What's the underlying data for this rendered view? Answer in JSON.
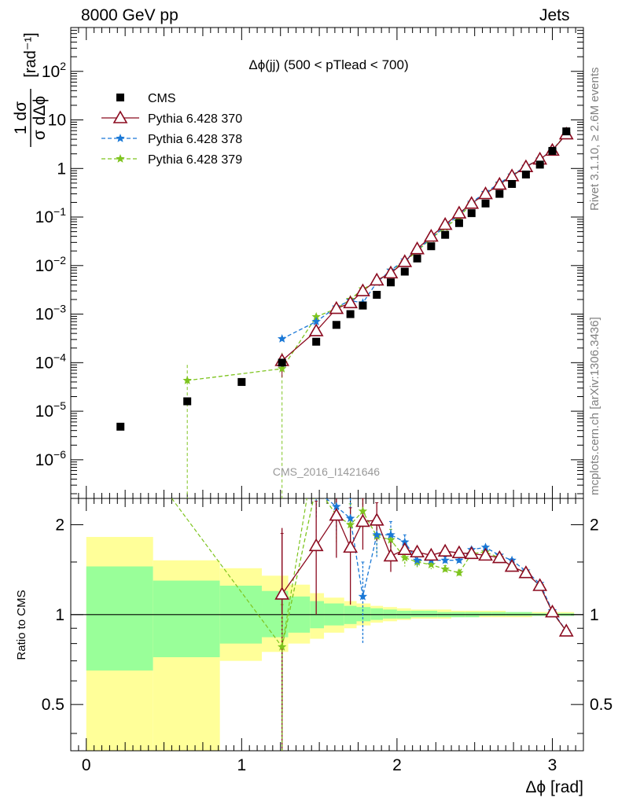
{
  "header": {
    "left": "8000 GeV pp",
    "right": "Jets"
  },
  "side_labels": {
    "rivet": "Rivet 3.1.10, ≥ 2.6M events",
    "mcplots": "mcplots.cern.ch [arXiv:1306.3436]"
  },
  "watermark": "CMS_2016_I1421646",
  "colors": {
    "cms": "#000000",
    "p370": "#8b0a1f",
    "p378": "#1a78d6",
    "p379": "#7ec41f",
    "band_outer": "#ffff99",
    "band_inner": "#99ff99"
  },
  "chart_data": [
    {
      "type": "scatter",
      "title": "Δϕ(jj) (500 < pTlead <  700)",
      "ylabel_num": "1 dσ",
      "ylabel_den": "σ dΔϕ",
      "ylabel_unit": "[rad⁻¹]",
      "xlabel": "Δϕ [rad]",
      "xlim": [
        -0.1,
        3.2
      ],
      "ylim": [
        1.6e-07,
        800
      ],
      "yscale": "log",
      "xticks": [
        0,
        1,
        2,
        3
      ],
      "yticks": [
        {
          "v": 1e-06,
          "base": "10",
          "exp": "−6"
        },
        {
          "v": 1e-05,
          "base": "10",
          "exp": "−5"
        },
        {
          "v": 0.0001,
          "base": "10",
          "exp": "−4"
        },
        {
          "v": 0.001,
          "base": "10",
          "exp": "−3"
        },
        {
          "v": 0.01,
          "base": "10",
          "exp": "−2"
        },
        {
          "v": 0.1,
          "base": "10",
          "exp": "−1"
        },
        {
          "v": 1,
          "base": "1",
          "exp": ""
        },
        {
          "v": 10,
          "base": "10",
          "exp": ""
        },
        {
          "v": 100,
          "base": "10",
          "exp": "2"
        }
      ],
      "legend_position": "top-left",
      "series": [
        {
          "name": "CMS",
          "marker": "square",
          "x": [
            0.22,
            0.65,
            1.0,
            1.26,
            1.48,
            1.61,
            1.7,
            1.78,
            1.87,
            1.96,
            2.05,
            2.13,
            2.22,
            2.31,
            2.4,
            2.48,
            2.57,
            2.66,
            2.74,
            2.83,
            2.92,
            3.0,
            3.09
          ],
          "y": [
            4.8e-06,
            1.6e-05,
            4e-05,
            0.0001,
            0.00027,
            0.0006,
            0.001,
            0.0015,
            0.0025,
            0.0045,
            0.0075,
            0.014,
            0.025,
            0.043,
            0.075,
            0.12,
            0.19,
            0.3,
            0.48,
            0.75,
            1.2,
            2.3,
            5.8
          ]
        },
        {
          "name": "Pythia 6.428 370",
          "marker": "triangle",
          "x": [
            1.26,
            1.48,
            1.61,
            1.7,
            1.78,
            1.87,
            1.96,
            2.05,
            2.13,
            2.22,
            2.31,
            2.4,
            2.48,
            2.57,
            2.66,
            2.74,
            2.83,
            2.92,
            3.0,
            3.09
          ],
          "y": [
            0.00011,
            0.00045,
            0.0013,
            0.0017,
            0.003,
            0.005,
            0.007,
            0.012,
            0.022,
            0.04,
            0.07,
            0.12,
            0.19,
            0.3,
            0.47,
            0.7,
            1.08,
            1.55,
            2.35,
            5.1
          ]
        },
        {
          "name": "Pythia 6.428 378",
          "marker": "star",
          "x": [
            1.26,
            1.48,
            1.61,
            1.7,
            1.78,
            1.87,
            1.96,
            2.05,
            2.13,
            2.22,
            2.31,
            2.4,
            2.48,
            2.57,
            2.66,
            2.74,
            2.83,
            2.92,
            3.0,
            3.09
          ],
          "y": [
            0.00031,
            0.0007,
            0.0014,
            0.0019,
            0.0017,
            0.0045,
            0.008,
            0.013,
            0.021,
            0.037,
            0.065,
            0.11,
            0.2,
            0.32,
            0.5,
            0.73,
            1.1,
            1.55,
            2.4,
            5.0
          ]
        },
        {
          "name": "Pythia 6.428 379",
          "marker": "star",
          "x": [
            0.65,
            1.26,
            1.48,
            1.61,
            1.7,
            1.78,
            1.87,
            1.96,
            2.05,
            2.13,
            2.22,
            2.31,
            2.4,
            2.48,
            2.57,
            2.66,
            2.74,
            2.83,
            2.92,
            3.0,
            3.09
          ],
          "y": [
            4.3e-05,
            7.5e-05,
            0.00088,
            0.0013,
            0.002,
            0.0033,
            0.0045,
            0.008,
            0.012,
            0.02,
            0.036,
            0.061,
            0.1,
            0.19,
            0.3,
            0.48,
            0.72,
            1.1,
            1.55,
            2.4,
            5.2
          ]
        }
      ]
    },
    {
      "type": "scatter",
      "ylabel": "Ratio to CMS",
      "xlabel": "Δϕ [rad]",
      "xlim": [
        -0.1,
        3.2
      ],
      "ylim": [
        0.35,
        2.45
      ],
      "yscale": "log",
      "yticks": [
        0.5,
        1,
        2
      ],
      "reference_line": 1,
      "band_edges": [
        0,
        0.43,
        0.86,
        1.13,
        1.3,
        1.44,
        1.53,
        1.66,
        1.74,
        1.83,
        1.91,
        2.0,
        2.09,
        2.18,
        2.26,
        2.35,
        2.44,
        2.53,
        2.61,
        2.7,
        2.79,
        2.87,
        2.96,
        3.05,
        3.14
      ],
      "band_outer_lo": [
        0.35,
        0.35,
        0.7,
        0.75,
        0.8,
        0.83,
        0.87,
        0.9,
        0.92,
        0.94,
        0.95,
        0.96,
        0.97,
        0.97,
        0.97,
        0.98,
        0.98,
        0.98,
        0.98,
        0.98,
        0.98,
        0.99,
        0.99,
        0.99
      ],
      "band_outer_hi": [
        1.82,
        1.52,
        1.43,
        1.35,
        1.26,
        1.18,
        1.14,
        1.11,
        1.09,
        1.07,
        1.06,
        1.05,
        1.04,
        1.04,
        1.04,
        1.03,
        1.03,
        1.03,
        1.03,
        1.02,
        1.02,
        1.02,
        1.02,
        1.02
      ],
      "band_inner_lo": [
        0.65,
        0.72,
        0.8,
        0.84,
        0.87,
        0.9,
        0.92,
        0.93,
        0.95,
        0.96,
        0.97,
        0.97,
        0.98,
        0.98,
        0.98,
        0.98,
        0.98,
        0.99,
        0.99,
        0.99,
        0.99,
        0.99,
        0.99,
        0.99
      ],
      "band_inner_hi": [
        1.45,
        1.3,
        1.25,
        1.2,
        1.15,
        1.11,
        1.09,
        1.07,
        1.06,
        1.05,
        1.04,
        1.03,
        1.03,
        1.03,
        1.02,
        1.02,
        1.02,
        1.02,
        1.02,
        1.02,
        1.02,
        1.01,
        1.01,
        1.01
      ],
      "series": [
        {
          "name": "Pythia 6.428 370",
          "x": [
            1.26,
            1.48,
            1.61,
            1.7,
            1.78,
            1.87,
            1.96,
            2.05,
            2.13,
            2.22,
            2.31,
            2.4,
            2.48,
            2.57,
            2.66,
            2.74,
            2.83,
            2.92,
            3.0,
            3.09
          ],
          "y": [
            1.17,
            1.7,
            2.15,
            1.68,
            2.05,
            2.07,
            1.57,
            1.65,
            1.62,
            1.58,
            1.63,
            1.61,
            1.6,
            1.58,
            1.55,
            1.45,
            1.38,
            1.25,
            1.02,
            0.88
          ],
          "err": [
            0.7,
            0.7,
            0.6,
            0.6,
            0.4,
            0.3,
            0.18,
            0.1,
            0.06,
            0.05,
            0.04,
            0.03,
            0.03,
            0.02,
            0.02,
            0.02,
            0.02,
            0.02,
            0.01,
            0.01
          ]
        },
        {
          "name": "Pythia 6.428 378",
          "x": [
            1.48,
            1.61,
            1.7,
            1.78,
            1.87,
            1.96,
            2.05,
            2.13,
            2.22,
            2.31,
            2.4,
            2.48,
            2.57,
            2.66,
            2.74,
            2.83,
            2.92,
            3.0,
            3.09
          ],
          "y": [
            2.6,
            2.3,
            2.1,
            1.15,
            1.85,
            1.85,
            1.75,
            1.52,
            1.52,
            1.52,
            1.52,
            1.65,
            1.68,
            1.58,
            1.52,
            1.4,
            1.27,
            1.03,
            0.88
          ],
          "err": [
            0.5,
            0.4,
            0.35,
            0.35,
            0.3,
            0.2,
            0.1,
            0.06,
            0.05,
            0.04,
            0.03,
            0.03,
            0.02,
            0.02,
            0.02,
            0.02,
            0.02,
            0.01,
            0.01
          ]
        },
        {
          "name": "Pythia 6.428 379",
          "x": [
            1.26,
            1.48,
            1.61,
            1.7,
            1.78,
            1.87,
            1.96,
            2.05,
            2.13,
            2.22,
            2.31,
            2.4,
            2.48,
            2.57,
            2.66,
            2.74,
            2.83,
            2.92,
            3.0,
            3.09
          ],
          "y": [
            0.78,
            2.7,
            2.15,
            2.0,
            2.22,
            1.83,
            1.78,
            1.55,
            1.5,
            1.47,
            1.42,
            1.38,
            1.6,
            1.62,
            1.55,
            1.45,
            1.38,
            1.25,
            1.02,
            0.88
          ],
          "err": [
            0.3,
            0.5,
            0.4,
            0.35,
            0.3,
            0.25,
            0.15,
            0.1,
            0.06,
            0.05,
            0.04,
            0.03,
            0.03,
            0.02,
            0.02,
            0.02,
            0.02,
            0.02,
            0.01,
            0.01
          ]
        }
      ]
    }
  ]
}
